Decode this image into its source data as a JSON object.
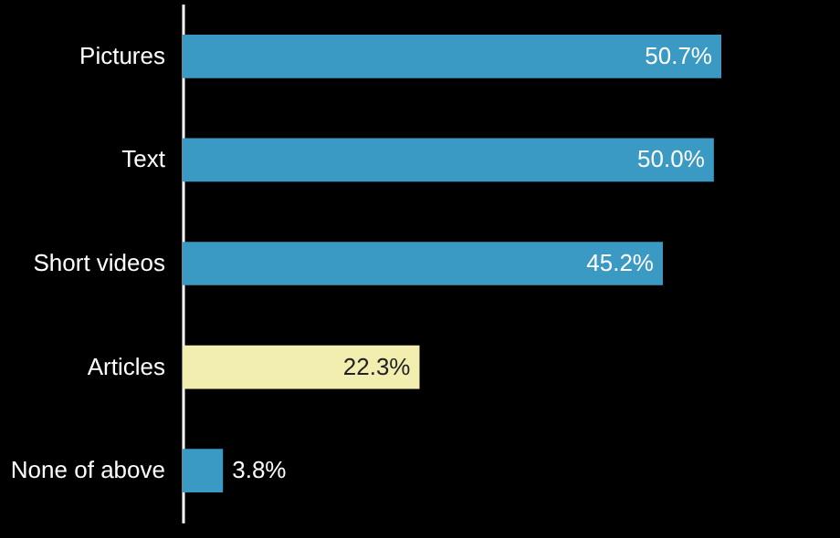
{
  "chart_data": {
    "type": "bar",
    "orientation": "horizontal",
    "categories": [
      "Pictures",
      "Text",
      "Short videos",
      "Articles",
      "None of above"
    ],
    "values": [
      50.7,
      50.0,
      45.2,
      22.3,
      3.8
    ],
    "colors": [
      "#3a9ac4",
      "#3a9ac4",
      "#3a9ac4",
      "#f2eeb0",
      "#3a9ac4"
    ],
    "value_labels": [
      "50.7%",
      "50.0%",
      "45.2%",
      "22.3%",
      "3.8%"
    ]
  }
}
